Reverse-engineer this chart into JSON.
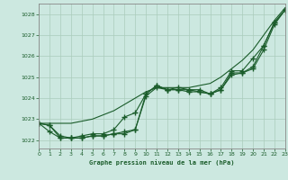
{
  "background_color": "#cce8e0",
  "grid_color": "#aaccbb",
  "line_color": "#1a5c2a",
  "title": "Graphe pression niveau de la mer (hPa)",
  "xlim": [
    0,
    23
  ],
  "ylim": [
    1021.6,
    1028.5
  ],
  "yticks": [
    1022,
    1023,
    1024,
    1025,
    1026,
    1027,
    1028
  ],
  "xticks": [
    0,
    1,
    2,
    3,
    4,
    5,
    6,
    7,
    8,
    9,
    10,
    11,
    12,
    13,
    14,
    15,
    16,
    17,
    18,
    19,
    20,
    21,
    22,
    23
  ],
  "smooth_x": [
    0,
    1,
    2,
    3,
    4,
    5,
    6,
    7,
    8,
    9,
    10,
    11,
    12,
    13,
    14,
    15,
    16,
    17,
    18,
    19,
    20,
    21,
    22,
    23
  ],
  "smooth_y": [
    1022.8,
    1022.8,
    1022.8,
    1022.8,
    1022.9,
    1023.0,
    1023.2,
    1023.4,
    1023.7,
    1024.0,
    1024.3,
    1024.5,
    1024.5,
    1024.5,
    1024.5,
    1024.6,
    1024.7,
    1025.0,
    1025.4,
    1025.8,
    1026.3,
    1027.0,
    1027.7,
    1028.3
  ],
  "series1_x": [
    0,
    1,
    2,
    3,
    4,
    5,
    6,
    7,
    8,
    9,
    10,
    11,
    12,
    13,
    14,
    15,
    16,
    17,
    18,
    19,
    20,
    21,
    22,
    23
  ],
  "series1_y": [
    1022.8,
    1022.7,
    1022.2,
    1022.1,
    1022.1,
    1022.2,
    1022.2,
    1022.3,
    1022.4,
    1022.5,
    1024.2,
    1024.6,
    1024.4,
    1024.4,
    1024.4,
    1024.4,
    1024.2,
    1024.4,
    1025.2,
    1025.2,
    1025.5,
    1026.5,
    1027.6,
    1028.2
  ],
  "series2_x": [
    0,
    1,
    2,
    3,
    4,
    5,
    6,
    7,
    8,
    9,
    10,
    11,
    12,
    13,
    14,
    15,
    16,
    17,
    18,
    19,
    20,
    21,
    22,
    23
  ],
  "series2_y": [
    1022.8,
    1022.4,
    1022.1,
    1022.1,
    1022.1,
    1022.2,
    1022.2,
    1022.3,
    1022.3,
    1022.5,
    1024.1,
    1024.5,
    1024.4,
    1024.4,
    1024.3,
    1024.3,
    1024.2,
    1024.4,
    1025.1,
    1025.2,
    1025.4,
    1026.3,
    1027.5,
    1028.2
  ],
  "series3_x": [
    0,
    1,
    2,
    3,
    4,
    5,
    6,
    7,
    8,
    9,
    10,
    11,
    12,
    13,
    14,
    15,
    16,
    17,
    18,
    19,
    20,
    21,
    22,
    23
  ],
  "series3_y": [
    1022.8,
    1022.7,
    1022.1,
    1022.1,
    1022.2,
    1022.3,
    1022.3,
    1022.5,
    1023.1,
    1023.3,
    1024.2,
    1024.6,
    1024.4,
    1024.5,
    1024.4,
    1024.3,
    1024.2,
    1024.5,
    1025.3,
    1025.3,
    1025.9,
    1026.5,
    1027.6,
    1028.2
  ]
}
